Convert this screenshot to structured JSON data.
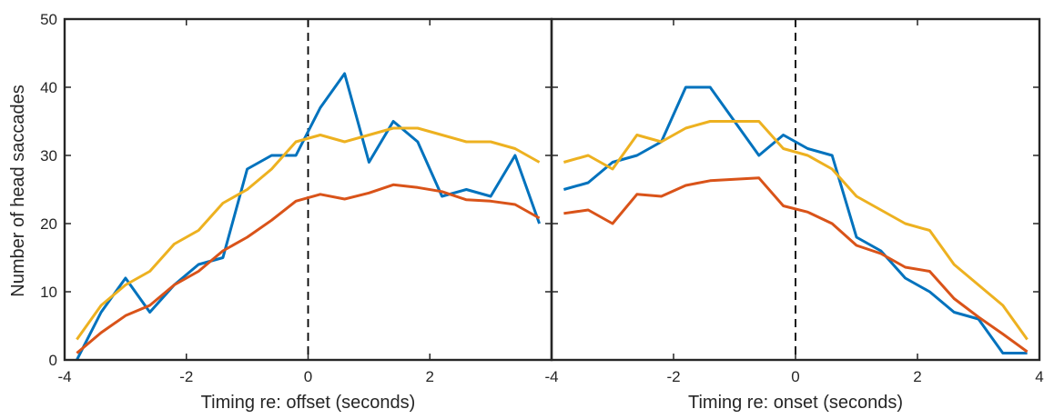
{
  "figure": {
    "ylabel": "Number of head saccades"
  },
  "chart_data": [
    {
      "type": "line",
      "xlabel": "Timing re: offset (seconds)",
      "ylabel": "Number of head saccades",
      "xlim": [
        -4,
        4
      ],
      "ylim": [
        0,
        50
      ],
      "x_ticks": [
        -4,
        -2,
        0,
        2,
        4
      ],
      "y_ticks": [
        0,
        10,
        20,
        30,
        40,
        50
      ],
      "x_tick_labels": [
        "-4",
        "-2",
        "0",
        "2"
      ],
      "y_tick_labels": [
        "0",
        "10",
        "20",
        "30",
        "40",
        "50"
      ],
      "grid": false,
      "reference_line": {
        "x": 0,
        "style": "dashed",
        "color": "#000000"
      },
      "series": [
        {
          "color": "#0072BD",
          "x": [
            -3.8,
            -3.4,
            -3.0,
            -2.6,
            -2.2,
            -1.8,
            -1.4,
            -1.0,
            -0.6,
            -0.2,
            0.2,
            0.6,
            1.0,
            1.4,
            1.8,
            2.2,
            2.6,
            3.0,
            3.4,
            3.8
          ],
          "y": [
            0,
            7,
            12,
            7,
            11,
            14,
            15,
            28,
            30,
            30,
            37,
            42,
            29,
            35,
            32,
            24,
            25,
            24,
            30,
            20
          ]
        },
        {
          "color": "#D95319",
          "x": [
            -3.8,
            -3.4,
            -3.0,
            -2.6,
            -2.2,
            -1.8,
            -1.4,
            -1.0,
            -0.6,
            -0.2,
            0.2,
            0.6,
            1.0,
            1.4,
            1.8,
            2.2,
            2.6,
            3.0,
            3.4,
            3.8
          ],
          "y": [
            1,
            4,
            6.5,
            8,
            11,
            13,
            16,
            18,
            20.5,
            23.3,
            24.3,
            23.6,
            24.5,
            25.7,
            25.3,
            24.7,
            23.5,
            23.3,
            22.8,
            20.8
          ]
        },
        {
          "color": "#EDB120",
          "x": [
            -3.8,
            -3.4,
            -3.0,
            -2.6,
            -2.2,
            -1.8,
            -1.4,
            -1.0,
            -0.6,
            -0.2,
            0.2,
            0.6,
            1.0,
            1.4,
            1.8,
            2.2,
            2.6,
            3.0,
            3.4,
            3.8
          ],
          "y": [
            3,
            8,
            11,
            13,
            17,
            19,
            23,
            25,
            28,
            32,
            33,
            32,
            33,
            34,
            34,
            33,
            32,
            32,
            31,
            29
          ]
        }
      ]
    },
    {
      "type": "line",
      "xlabel": "Timing re: onset (seconds)",
      "xlim": [
        -4,
        4
      ],
      "ylim": [
        0,
        50
      ],
      "x_ticks": [
        -4,
        -2,
        0,
        2,
        4
      ],
      "y_ticks": [
        0,
        10,
        20,
        30,
        40,
        50
      ],
      "x_tick_labels": [
        "-4",
        "-2",
        "0",
        "2",
        "4"
      ],
      "grid": false,
      "reference_line": {
        "x": 0,
        "style": "dashed",
        "color": "#000000"
      },
      "series": [
        {
          "color": "#0072BD",
          "x": [
            -3.8,
            -3.4,
            -3.0,
            -2.6,
            -2.2,
            -1.8,
            -1.4,
            -1.0,
            -0.6,
            -0.2,
            0.2,
            0.6,
            1.0,
            1.4,
            1.8,
            2.2,
            2.6,
            3.0,
            3.4,
            3.8
          ],
          "y": [
            25,
            26,
            29,
            30,
            32,
            40,
            40,
            35,
            30,
            33,
            31,
            30,
            18,
            16,
            12,
            10,
            7,
            6,
            1,
            1
          ]
        },
        {
          "color": "#D95319",
          "x": [
            -3.8,
            -3.4,
            -3.0,
            -2.6,
            -2.2,
            -1.8,
            -1.4,
            -1.0,
            -0.6,
            -0.2,
            0.2,
            0.6,
            1.0,
            1.4,
            1.8,
            2.2,
            2.6,
            3.0,
            3.4,
            3.8
          ],
          "y": [
            21.5,
            22,
            20,
            24.3,
            24,
            25.6,
            26.3,
            26.5,
            26.7,
            22.6,
            21.7,
            20,
            16.8,
            15.6,
            13.6,
            13,
            9,
            6.3,
            3.8,
            1.2
          ]
        },
        {
          "color": "#EDB120",
          "x": [
            -3.8,
            -3.4,
            -3.0,
            -2.6,
            -2.2,
            -1.8,
            -1.4,
            -1.0,
            -0.6,
            -0.2,
            0.2,
            0.6,
            1.0,
            1.4,
            1.8,
            2.2,
            2.6,
            3.0,
            3.4,
            3.8
          ],
          "y": [
            29,
            30,
            28,
            33,
            32,
            34,
            35,
            35,
            35,
            31,
            30,
            28,
            24,
            22,
            20,
            19,
            14,
            11,
            8,
            3
          ]
        }
      ]
    }
  ]
}
